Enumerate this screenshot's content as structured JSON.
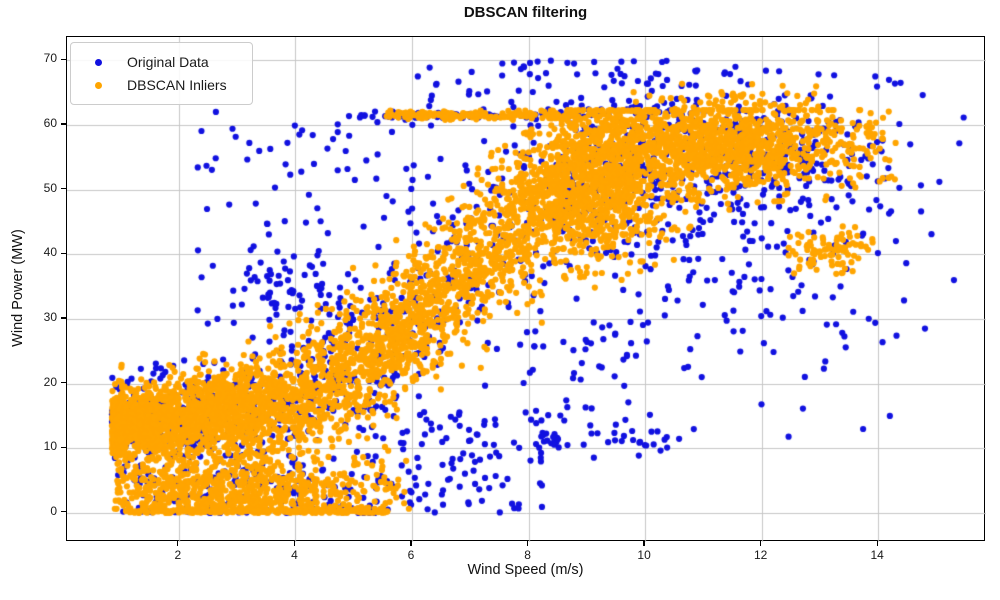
{
  "chart_data": {
    "type": "scatter",
    "title": "DBSCAN filtering",
    "xlabel": "Wind Speed (m/s)",
    "ylabel": "Wind Power (MW)",
    "xlim": [
      0.08,
      15.85
    ],
    "ylim": [
      -4.5,
      73.6
    ],
    "x_ticks": [
      2,
      4,
      6,
      8,
      10,
      12,
      14
    ],
    "y_ticks": [
      0,
      10,
      20,
      30,
      40,
      50,
      60,
      70
    ],
    "grid": true,
    "grid_color": "#c6c6c6",
    "legend_position": "upper left",
    "marker_radius": 3.1,
    "series": [
      {
        "name": "Original Data",
        "color": "#1111e0",
        "clusters": [
          {
            "kind": "curve",
            "n": 700,
            "x_min": 0.85,
            "x_max": 9.9,
            "x_pow": 1.35,
            "base": 13,
            "amp": 47,
            "mid": 6.8,
            "scale": 1.35,
            "sigma_lo": 3.4,
            "sigma_hi": 7.8,
            "sigma_v0": 1,
            "sigma_v1": 7.5,
            "y_lo": 0.2,
            "cap": 62.4
          },
          {
            "kind": "gauss",
            "n": 120,
            "x_mean": 3.1,
            "x_sd": 1.3,
            "x_clip": [
              0.9,
              6.0
            ],
            "y_mean": 3.8,
            "y_sd": 2.8,
            "y_clip": [
              0.2,
              9.5
            ]
          },
          {
            "kind": "hline",
            "n": 50,
            "x_range": [
              1.0,
              5.6
            ],
            "y_mean": 0.2,
            "y_sd": 0.3,
            "y_clip": [
              0,
              1.2
            ]
          },
          {
            "kind": "hline",
            "n": 70,
            "x_range": [
              4.9,
              8.9
            ],
            "y_mean": 61.5,
            "y_sd": 0.3
          },
          {
            "kind": "gauss",
            "n": 260,
            "x_mean": 11.4,
            "x_sd": 1.5,
            "x_clip": [
              8.8,
              14.2
            ],
            "y_mean": 56,
            "y_sd": 4.5,
            "y_clip": [
              40,
              63
            ]
          },
          {
            "kind": "gauss",
            "n": 80,
            "x_mean": 9.2,
            "x_sd": 0.8,
            "x_clip": [
              7.8,
              11.0
            ],
            "y_mean": 49,
            "y_sd": 5.5,
            "y_clip": [
              33,
              62
            ]
          },
          {
            "kind": "uniform",
            "n": 115,
            "x_range": [
              2.3,
              6.6
            ],
            "y_range": [
              29,
              63
            ]
          },
          {
            "kind": "gauss",
            "n": 42,
            "x_mean": 3.75,
            "x_sd": 0.38,
            "x_clip": [
              2.9,
              4.6
            ],
            "y_mean": 35,
            "y_sd": 2.6,
            "y_clip": [
              29,
              41
            ]
          },
          {
            "kind": "uniform",
            "n": 70,
            "x_range": [
              6.2,
              10.9
            ],
            "y_range": [
              61.5,
              70
            ]
          },
          {
            "kind": "gauss",
            "n": 270,
            "x_mean": 11.9,
            "x_sd": 1.5,
            "x_clip": [
              9.4,
              15.55
            ],
            "y_mean": 46,
            "y_sd": 12,
            "y_clip": [
              10,
              69
            ]
          },
          {
            "kind": "uniform",
            "n": 110,
            "x_range": [
              5.2,
              8.3
            ],
            "y_range": [
              0,
              16
            ]
          },
          {
            "kind": "hline",
            "n": 45,
            "x_range": [
              8.0,
              10.6
            ],
            "y_mean": 11.3,
            "y_sd": 1.0
          },
          {
            "kind": "uniform",
            "n": 45,
            "x_range": [
              7.8,
              10.2
            ],
            "y_range": [
              14,
              30
            ]
          },
          {
            "kind": "uniform",
            "n": 14,
            "x_range": [
              1.1,
              3.3
            ],
            "y_range": [
              2,
              22
            ]
          },
          {
            "kind": "points",
            "pts": [
              [
                5.08,
                0
              ],
              [
                5.17,
                0
              ],
              [
                5.27,
                0
              ],
              [
                5.36,
                0
              ],
              [
                15.3,
                36
              ],
              [
                15.05,
                51.2
              ],
              [
                14.2,
                15
              ],
              [
                14.55,
                57
              ],
              [
                7.55,
                69.5
              ],
              [
                8.3,
                68
              ],
              [
                12.3,
                68.3
              ],
              [
                11.55,
                69
              ],
              [
                13.95,
                67.5
              ],
              [
                0.95,
                12.5
              ],
              [
                6.1,
                67.5
              ]
            ]
          }
        ]
      },
      {
        "name": "DBSCAN Inliers",
        "color": "#ffa500",
        "clusters": [
          {
            "kind": "curve",
            "n": 3600,
            "x_min": 0.85,
            "x_max": 9.9,
            "x_pow": 1.35,
            "base": 13,
            "amp": 47,
            "mid": 6.8,
            "scale": 1.35,
            "sigma_lo": 2.6,
            "sigma_hi": 6.2,
            "sigma_v0": 1,
            "sigma_v1": 7.5,
            "y_lo": 0.2,
            "cap": 62.2
          },
          {
            "kind": "gauss",
            "n": 650,
            "x_mean": 3.1,
            "x_sd": 1.3,
            "x_clip": [
              0.9,
              6.0
            ],
            "y_mean": 3.8,
            "y_sd": 2.6,
            "y_clip": [
              0.2,
              9.5
            ]
          },
          {
            "kind": "hline",
            "n": 220,
            "x_range": [
              1.0,
              5.6
            ],
            "y_mean": 0.2,
            "y_sd": 0.3,
            "y_clip": [
              0,
              1.2
            ]
          },
          {
            "kind": "hline",
            "n": 160,
            "x_range": [
              5.55,
              8.85
            ],
            "y_mean": 61.5,
            "y_sd": 0.3
          },
          {
            "kind": "gauss",
            "n": 1250,
            "x_mean": 11.2,
            "x_sd": 1.3,
            "x_clip": [
              8.6,
              14.3
            ],
            "y_mean": 56.5,
            "y_sd": 3.4,
            "y_clip": [
              43,
              62.3
            ],
            "cap": 62.3
          },
          {
            "kind": "gauss",
            "n": 550,
            "x_mean": 9.2,
            "x_sd": 0.75,
            "x_clip": [
              7.8,
              11.0
            ],
            "y_mean": 49,
            "y_sd": 5,
            "y_clip": [
              34,
              62
            ]
          },
          {
            "kind": "gauss",
            "n": 90,
            "x_mean": 13.15,
            "x_sd": 0.4,
            "x_clip": [
              12.3,
              14.0
            ],
            "y_mean": 40.5,
            "y_sd": 1.6,
            "y_clip": [
              36.5,
              44.5
            ]
          },
          {
            "kind": "gauss",
            "n": 60,
            "x_mean": 11.3,
            "x_sd": 0.9,
            "x_clip": [
              9.8,
              13.0
            ],
            "y_mean": 63.5,
            "y_sd": 1.2,
            "y_clip": [
              62,
              66.5
            ]
          }
        ]
      }
    ]
  }
}
